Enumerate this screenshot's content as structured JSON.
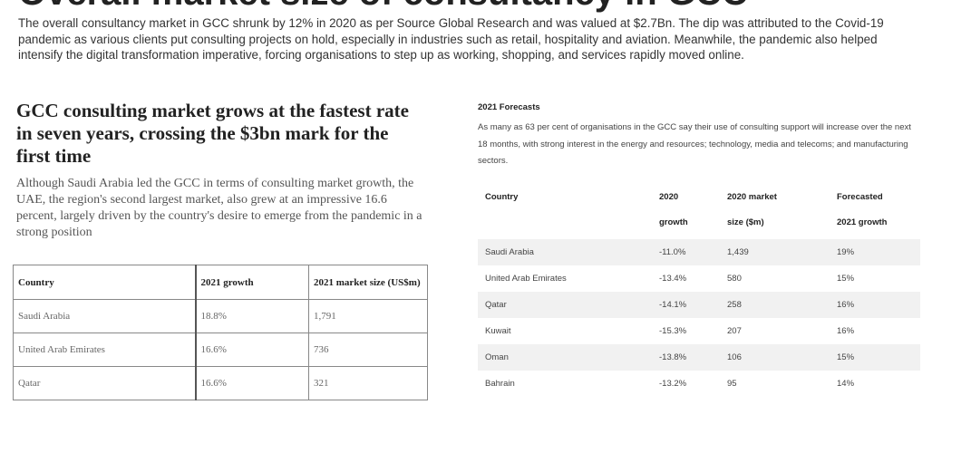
{
  "page": {
    "top_heading": "Overall market size of consultancy in GCC",
    "intro": "The overall consultancy market in GCC shrunk by 12% in 2020 as per Source Global Research and was valued at $2.7Bn. The dip was attributed to the Covid-19 pandemic as various clients put consulting projects on hold, especially in industries such as retail, hospitality and aviation. Meanwhile, the pandemic also helped intensify the digital transformation imperative, forcing organisations to step up as working, shopping, and services rapidly moved online."
  },
  "left": {
    "headline": "GCC consulting market grows at the fastest rate in seven years, crossing the $3bn mark for the first time",
    "subtext": "Although Saudi Arabia led the GCC in terms of consulting market growth, the UAE, the region's second largest market, also grew at an impressive 16.6 percent, largely driven by the country's desire to emerge from the pandemic in a strong position",
    "table": {
      "headers": [
        "Country",
        "2021 growth",
        "2021 market size (US$m)"
      ],
      "rows": [
        [
          "Saudi Arabia",
          "18.8%",
          "1,791"
        ],
        [
          "United Arab Emirates",
          "16.6%",
          "736"
        ],
        [
          "Qatar",
          "16.6%",
          "321"
        ]
      ]
    }
  },
  "right": {
    "title": "2021 Forecasts",
    "text": "As many as 63 per cent of organisations in the GCC say their use of consulting support will increase over the next 18 months, with strong interest in the energy and resources; technology, media and telecoms; and manufacturing sectors.",
    "table": {
      "headers": [
        [
          "Country",
          ""
        ],
        [
          "2020",
          "growth"
        ],
        [
          "2020 market",
          "size ($m)"
        ],
        [
          "Forecasted",
          "2021 growth"
        ]
      ],
      "rows": [
        [
          "Saudi Arabia",
          "-11.0%",
          "1,439",
          "19%"
        ],
        [
          "United Arab Emirates",
          "-13.4%",
          "580",
          "15%"
        ],
        [
          "Qatar",
          "-14.1%",
          "258",
          "16%"
        ],
        [
          "Kuwait",
          "-15.3%",
          "207",
          "16%"
        ],
        [
          "Oman",
          "-13.8%",
          "106",
          "15%"
        ],
        [
          "Bahrain",
          "-13.2%",
          "95",
          "14%"
        ]
      ]
    }
  }
}
